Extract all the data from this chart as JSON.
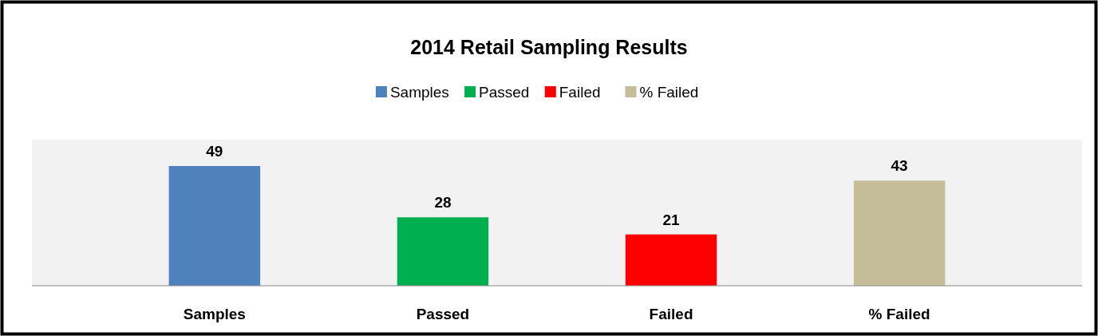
{
  "chart_data": {
    "type": "bar",
    "title": "2014 Retail Sampling Results",
    "categories": [
      "Samples",
      "Passed",
      "Failed",
      "% Failed"
    ],
    "series": [
      {
        "name": "Samples",
        "color": "#4f81bd",
        "values": [
          49,
          null,
          null,
          null
        ]
      },
      {
        "name": "Passed",
        "color": "#00b050",
        "values": [
          null,
          28,
          null,
          null
        ]
      },
      {
        "name": "Failed",
        "color": "#ff0000",
        "values": [
          null,
          null,
          21,
          null
        ]
      },
      {
        "name": "% Failed",
        "color": "#c4bd97",
        "values": [
          null,
          null,
          null,
          43
        ]
      }
    ],
    "data_labels": true,
    "legend": "top"
  }
}
